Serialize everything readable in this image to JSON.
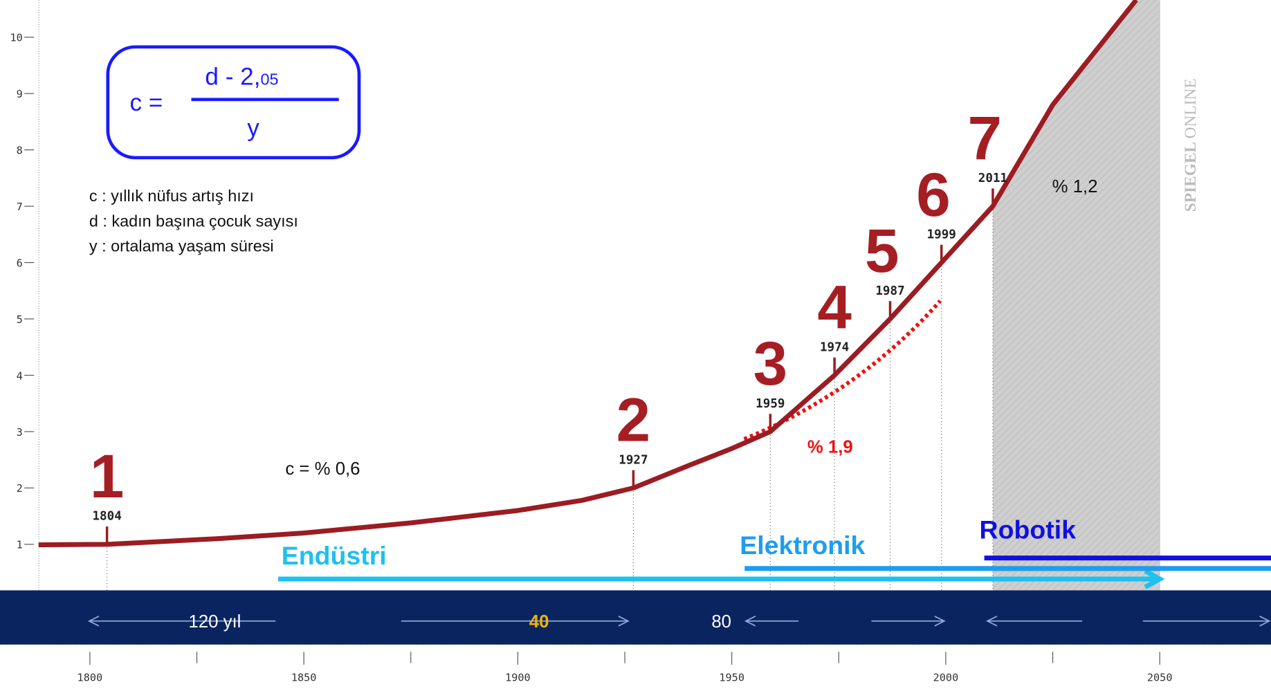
{
  "chart_data": {
    "type": "line",
    "xlim": [
      1779,
      2076
    ],
    "ylim": [
      -0.75,
      10.66
    ],
    "xticks": [
      1800,
      1850,
      1900,
      1950,
      2000,
      2050
    ],
    "xminor": [
      1825,
      1875,
      1925,
      1975,
      2025
    ],
    "yticks": [
      1,
      2,
      3,
      4,
      5,
      6,
      7,
      8,
      9,
      10
    ],
    "series": [
      {
        "color": "#9b1c22",
        "x": [
          1788,
          1804,
          1830,
          1850,
          1875,
          1900,
          1915,
          1927,
          1940,
          1950,
          1959,
          1974,
          1987,
          1999,
          2011,
          2025,
          2044.5
        ],
        "values": [
          0.99,
          1,
          1.1,
          1.2,
          1.38,
          1.6,
          1.78,
          2,
          2.4,
          2.7,
          3,
          4,
          5,
          6,
          7,
          8.8,
          10.66
        ]
      }
    ],
    "milestones": [
      {
        "number": 1,
        "year": 1804,
        "value": 1
      },
      {
        "number": 2,
        "year": 1927,
        "value": 2
      },
      {
        "number": 3,
        "year": 1959,
        "value": 3
      },
      {
        "number": 4,
        "year": 1974,
        "value": 4
      },
      {
        "number": 5,
        "year": 1987,
        "value": 5
      },
      {
        "number": 6,
        "year": 1999,
        "value": 6
      },
      {
        "number": 7,
        "year": 2011,
        "value": 7
      }
    ],
    "forecast_range": [
      2011,
      2050
    ],
    "formula": {
      "lhs": "c =",
      "numerator": "d - 2,",
      "numerator_small": "05",
      "denominator": "y"
    },
    "definitions": [
      "c : yıllık nüfus artış hızı",
      "d : kadın başına çocuk sayısı",
      "y : ortalama yaşam süresi"
    ],
    "annotations": {
      "rate_early": "c = % 0,6",
      "rate_mid": "% 1,9",
      "rate_late": "% 1,2"
    },
    "eras": [
      {
        "label": "Endüstri",
        "start": 1844,
        "color": "#1ec0f0"
      },
      {
        "label": "Elektronik",
        "start": 1953,
        "color": "#1e9cf0"
      },
      {
        "label": "Robotik",
        "start": 2009,
        "color": "#1010e0"
      }
    ],
    "intervals": [
      "120 yıl",
      "40",
      "80"
    ],
    "source": {
      "brand": "SPIEGEL",
      "suffix": "ONLINE"
    }
  }
}
